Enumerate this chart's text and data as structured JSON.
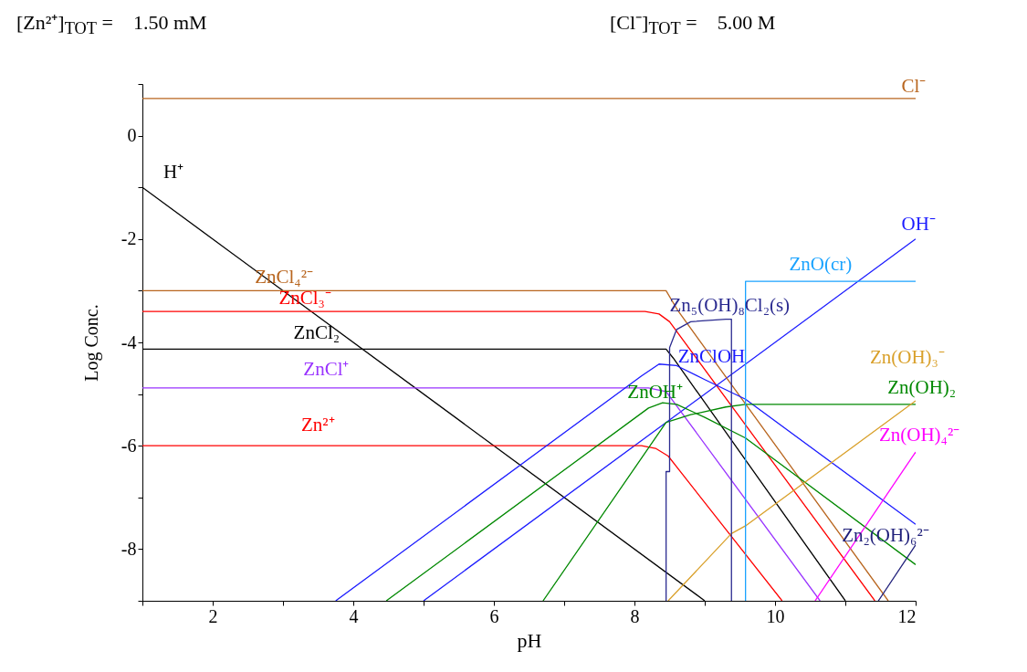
{
  "chart_data": {
    "type": "line",
    "xlabel": "pH",
    "ylabel": "Log Conc.",
    "annotations": [
      "[Zn²⁺]$_{TOT}$ =    1.50 mM",
      "[Cl⁻]$_{TOT}$ =    5.00 M"
    ],
    "xlim": [
      1,
      12
    ],
    "ylim": [
      -9,
      1
    ],
    "xticks": [
      {
        "value": 1,
        "label": null
      },
      2,
      {
        "value": 3,
        "label": null
      },
      4,
      {
        "value": 5,
        "label": null
      },
      6,
      {
        "value": 7,
        "label": null
      },
      8,
      {
        "value": 9,
        "label": null
      },
      10,
      {
        "value": 11,
        "label": null
      },
      12
    ],
    "yticks": [
      {
        "value": 1,
        "label": null
      },
      0,
      {
        "value": -1,
        "label": null
      },
      -2,
      {
        "value": -3,
        "label": null
      },
      -4,
      {
        "value": -5,
        "label": null
      },
      -6,
      {
        "value": -7,
        "label": null
      },
      -8,
      {
        "value": -9,
        "label": null
      }
    ],
    "legend": false,
    "grid": false,
    "series": [
      {
        "name": "Cl⁻",
        "color": "#b8651e",
        "x": [
          1,
          12
        ],
        "values": [
          0.72,
          0.72
        ]
      },
      {
        "name": "H⁺",
        "color": "#000000",
        "x": [
          1,
          9
        ],
        "values": [
          -1,
          -9
        ]
      },
      {
        "name": "OH⁻",
        "color": "#1a1aff",
        "x": [
          5,
          12
        ],
        "values": [
          -9,
          -2
        ]
      },
      {
        "name": "ZnCl₄²⁻",
        "color": "#b8651e",
        "x": [
          1,
          8.45,
          8.62,
          11.61
        ],
        "values": [
          -3,
          -3,
          -3.39,
          -9
        ]
      },
      {
        "name": "ZnCl₃⁻",
        "color": "#ff0000",
        "x": [
          1,
          8.15,
          8.35,
          8.5,
          11.42
        ],
        "values": [
          -3.4,
          -3.4,
          -3.45,
          -3.6,
          -9
        ]
      },
      {
        "name": "ZnCl₂",
        "color": "#000000",
        "x": [
          1,
          8.45,
          8.55,
          11.0
        ],
        "values": [
          -4.13,
          -4.13,
          -4.3,
          -9
        ]
      },
      {
        "name": "ZnCl⁺",
        "color": "#9933ff",
        "x": [
          1,
          8.2,
          8.45,
          10.64
        ],
        "values": [
          -4.88,
          -4.88,
          -4.95,
          -9
        ]
      },
      {
        "name": "Zn²⁺",
        "color": "#ff0000",
        "x": [
          1,
          8.1,
          8.3,
          8.48,
          10.1
        ],
        "values": [
          -6,
          -6,
          -6.05,
          -6.2,
          -9
        ]
      },
      {
        "name": "ZnOH⁺",
        "color": "#008800",
        "x": [
          4.47,
          8.2,
          8.4,
          8.6,
          9.0,
          9.58,
          12
        ],
        "values": [
          -9,
          -5.27,
          -5.17,
          -5.2,
          -5.45,
          -5.85,
          -8.3
        ]
      },
      {
        "name": "ZnClOH",
        "color": "#1a1aff",
        "x": [
          3.75,
          8.1,
          8.35,
          8.6,
          9.0,
          9.58,
          12
        ],
        "values": [
          -9,
          -4.65,
          -4.42,
          -4.45,
          -4.72,
          -5.1,
          -7.52
        ]
      },
      {
        "name": "Zn(OH)₂",
        "color": "#008800",
        "x": [
          6.7,
          8.45,
          8.8,
          9.3,
          9.58,
          12
        ],
        "values": [
          -9,
          -5.55,
          -5.4,
          -5.25,
          -5.2,
          -5.2
        ]
      },
      {
        "name": "Zn(OH)₃⁻",
        "color": "#d9a02a",
        "x": [
          8.48,
          9.38,
          9.58,
          12
        ],
        "values": [
          -9,
          -7.7,
          -7.55,
          -5.13
        ]
      },
      {
        "name": "Zn(OH)₄²⁻",
        "color": "#ff00ff",
        "x": [
          10.57,
          12
        ],
        "values": [
          -9,
          -6.12
        ]
      },
      {
        "name": "Zn₂(OH)₆²⁻",
        "color": "#1f1f7a",
        "x": [
          11.47,
          12
        ],
        "values": [
          -9,
          -7.92
        ]
      },
      {
        "name": "Zn₅(OH)₈Cl₂(s)",
        "color": "#2b2b90",
        "x": [
          8.45,
          8.45,
          8.5,
          8.5,
          8.6,
          8.8,
          9.3,
          9.38,
          9.38
        ],
        "values": [
          -9,
          -6.5,
          -6.5,
          -4.1,
          -3.75,
          -3.6,
          -3.55,
          -3.55,
          -9
        ]
      },
      {
        "name": "ZnO(cr)",
        "color": "#1aa3ff",
        "x": [
          9.58,
          9.58,
          12
        ],
        "values": [
          -9,
          -2.82,
          -2.82
        ]
      }
    ]
  }
}
